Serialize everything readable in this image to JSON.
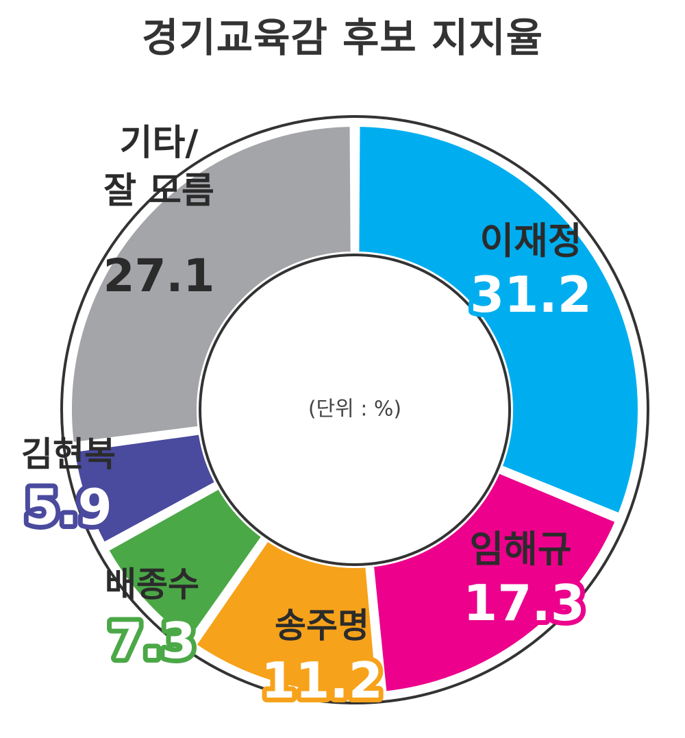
{
  "title": "경기교육감 후보 지지율",
  "unit_note": "(단위 : %)",
  "chart_data": {
    "type": "pie",
    "title": "경기교육감 후보 지지율",
    "unit": "%",
    "slices": [
      {
        "name": "이재정",
        "value": 31.2,
        "color": "#00AEEF"
      },
      {
        "name": "임해규",
        "value": 17.3,
        "color": "#EC008C"
      },
      {
        "name": "송주명",
        "value": 11.2,
        "color": "#F7A21B"
      },
      {
        "name": "배종수",
        "value": 7.3,
        "color": "#4BA847"
      },
      {
        "name": "김현복",
        "value": 5.9,
        "color": "#4A4A9E"
      },
      {
        "name": "기타/\n잘 모름",
        "value": 27.1,
        "color": "#A4A5A9"
      }
    ],
    "value_labels": [
      "31.2",
      "17.3",
      "11.2",
      "7.3",
      "5.9",
      "27.1"
    ]
  }
}
